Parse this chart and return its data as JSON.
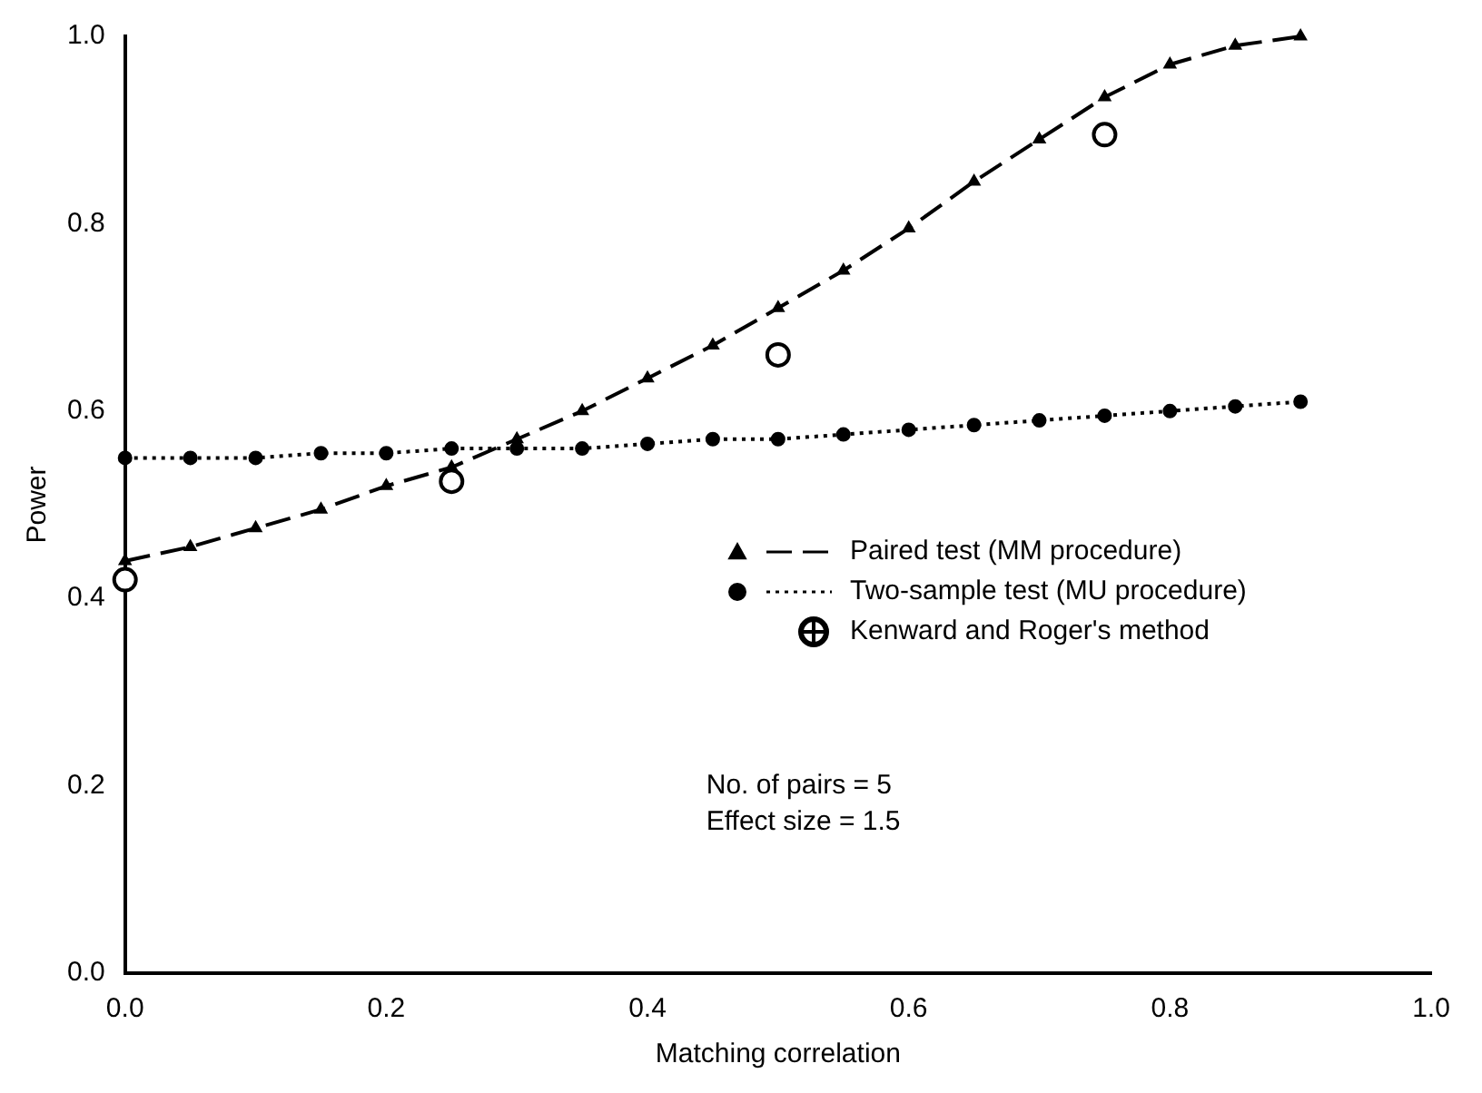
{
  "chart_data": {
    "type": "line",
    "xlabel": "Matching correlation",
    "ylabel": "Power",
    "xlim": [
      0,
      1
    ],
    "xticks": [
      {
        "value": 0,
        "label": "0.0"
      },
      {
        "value": 0.2,
        "label": "0.2"
      },
      {
        "value": 0.4,
        "label": "0.4"
      },
      {
        "value": 0.6,
        "label": "0.6"
      },
      {
        "value": 0.8,
        "label": "0.8"
      },
      {
        "value": 1,
        "label": "1.0"
      }
    ],
    "ylim": [
      0,
      1
    ],
    "yticks": [
      {
        "value": 0,
        "label": "0.0"
      },
      0.2,
      0.4,
      0.6,
      0.8,
      {
        "value": 1,
        "label": "1.0"
      }
    ],
    "x": [
      0,
      0.05,
      0.1,
      0.15,
      0.2,
      0.25,
      0.3,
      0.35,
      0.4,
      0.45,
      0.5,
      0.55,
      0.6,
      0.65,
      0.7,
      0.75,
      0.8,
      0.85,
      0.9
    ],
    "grid": false,
    "legend": "right",
    "series": [
      {
        "name": "Paired test (MM procedure)",
        "color": "#000000",
        "marker": "triangle",
        "line_style": "dashed",
        "values": [
          0.44,
          0.455,
          0.475,
          0.495,
          0.52,
          0.54,
          0.57,
          0.6,
          0.635,
          0.67,
          0.71,
          0.75,
          0.795,
          0.845,
          0.89,
          0.935,
          0.97,
          0.99,
          1.0
        ]
      },
      {
        "name": "Two-sample test (MU procedure)",
        "color": "#000000",
        "marker": "circle",
        "line_style": "dotted",
        "values": [
          0.55,
          0.55,
          0.55,
          0.555,
          0.555,
          0.56,
          0.56,
          0.56,
          0.565,
          0.57,
          0.57,
          0.575,
          0.58,
          0.585,
          0.59,
          0.595,
          0.6,
          0.605,
          0.61
        ]
      },
      {
        "name": "Kenward and Roger's method",
        "type": "scatter",
        "color": "#000000",
        "marker": "circle",
        "x": [
          0,
          0.25,
          0.5,
          0.75
        ],
        "values": [
          0.42,
          0.525,
          0.66,
          0.895
        ]
      }
    ],
    "annotations": [
      "No. of pairs = 5",
      "Effect size = 1.5"
    ]
  }
}
